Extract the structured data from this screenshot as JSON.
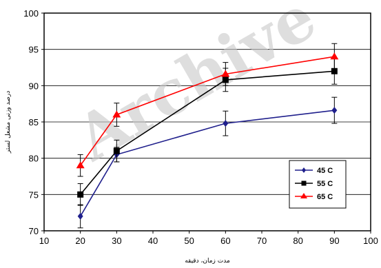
{
  "chart_data": {
    "type": "line",
    "title": "",
    "xlabel": "مدت زمان، دقیقه",
    "ylabel": "درصد وزنی مشعل لستر",
    "xlim": [
      10,
      100
    ],
    "ylim": [
      70,
      100
    ],
    "x_ticks": [
      "10",
      "20",
      "30",
      "40",
      "50",
      "60",
      "70",
      "80",
      "90",
      "100"
    ],
    "y_ticks": [
      "70",
      "75",
      "80",
      "85",
      "90",
      "95",
      "100"
    ],
    "x": [
      20,
      30,
      60,
      90
    ],
    "series": [
      {
        "name": "45 C",
        "values": [
          72.0,
          80.5,
          84.8,
          86.6
        ],
        "errors": [
          1.6,
          1.0,
          1.7,
          1.8
        ],
        "color": "#1f1f8c",
        "marker": "diamond"
      },
      {
        "name": "55 C",
        "values": [
          75.0,
          81.0,
          90.8,
          92.0
        ],
        "errors": [
          1.5,
          1.5,
          1.6,
          1.8
        ],
        "color": "#000000",
        "marker": "square"
      },
      {
        "name": "65 C",
        "values": [
          79.0,
          86.0,
          91.6,
          94.0
        ],
        "errors": [
          1.5,
          1.6,
          1.6,
          1.8
        ],
        "color": "#ff0000",
        "marker": "triangle"
      }
    ],
    "legend_position": "bottom-right",
    "grid": true,
    "watermark": "Archive"
  }
}
